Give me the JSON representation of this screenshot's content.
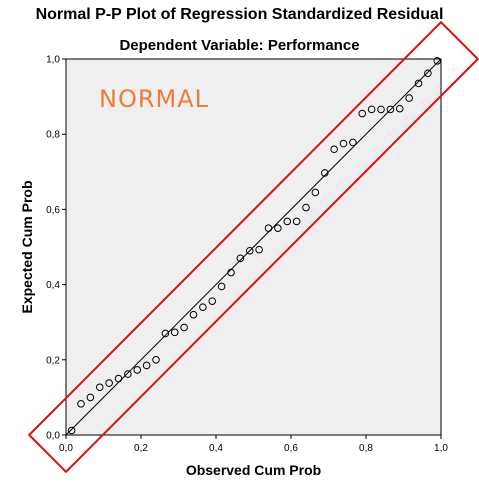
{
  "title": "Normal P-P Plot of Regression Standardized Residual",
  "subtitle": "Dependent Variable: Performance",
  "annotation": "NORMAL",
  "colors": {
    "plot_background": "#efefef",
    "points": "#000000",
    "reference_line": "#000000",
    "highlight_box": "#dd1111",
    "annotation": "#f07a3a"
  },
  "chart_data": {
    "type": "scatter",
    "title": "Normal P-P Plot of Regression Standardized Residual",
    "subtitle": "Dependent Variable: Performance",
    "xlabel": "Observed Cum Prob",
    "ylabel": "Expected Cum Prob",
    "xlim": [
      0,
      1
    ],
    "ylim": [
      0,
      1
    ],
    "xticks": [
      "0,0",
      "0,2",
      "0,4",
      "0,6",
      "0,8",
      "1,0"
    ],
    "yticks": [
      "0,0",
      "0,2",
      "0,4",
      "0,6",
      "0,8",
      "1,0"
    ],
    "grid": false,
    "reference_line": [
      [
        0,
        0
      ],
      [
        1,
        1
      ]
    ],
    "points": [
      {
        "x": 0.015,
        "y": 0.012
      },
      {
        "x": 0.04,
        "y": 0.083
      },
      {
        "x": 0.065,
        "y": 0.1
      },
      {
        "x": 0.09,
        "y": 0.127
      },
      {
        "x": 0.115,
        "y": 0.138
      },
      {
        "x": 0.14,
        "y": 0.15
      },
      {
        "x": 0.165,
        "y": 0.162
      },
      {
        "x": 0.19,
        "y": 0.173
      },
      {
        "x": 0.215,
        "y": 0.185
      },
      {
        "x": 0.24,
        "y": 0.2
      },
      {
        "x": 0.265,
        "y": 0.27
      },
      {
        "x": 0.29,
        "y": 0.273
      },
      {
        "x": 0.315,
        "y": 0.286
      },
      {
        "x": 0.34,
        "y": 0.32
      },
      {
        "x": 0.365,
        "y": 0.34
      },
      {
        "x": 0.39,
        "y": 0.356
      },
      {
        "x": 0.415,
        "y": 0.395
      },
      {
        "x": 0.44,
        "y": 0.432
      },
      {
        "x": 0.465,
        "y": 0.47
      },
      {
        "x": 0.49,
        "y": 0.49
      },
      {
        "x": 0.515,
        "y": 0.493
      },
      {
        "x": 0.54,
        "y": 0.55
      },
      {
        "x": 0.565,
        "y": 0.55
      },
      {
        "x": 0.59,
        "y": 0.568
      },
      {
        "x": 0.615,
        "y": 0.568
      },
      {
        "x": 0.64,
        "y": 0.605
      },
      {
        "x": 0.665,
        "y": 0.645
      },
      {
        "x": 0.69,
        "y": 0.697
      },
      {
        "x": 0.715,
        "y": 0.76
      },
      {
        "x": 0.74,
        "y": 0.775
      },
      {
        "x": 0.765,
        "y": 0.778
      },
      {
        "x": 0.79,
        "y": 0.855
      },
      {
        "x": 0.815,
        "y": 0.866
      },
      {
        "x": 0.84,
        "y": 0.866
      },
      {
        "x": 0.865,
        "y": 0.866
      },
      {
        "x": 0.89,
        "y": 0.868
      },
      {
        "x": 0.915,
        "y": 0.896
      },
      {
        "x": 0.94,
        "y": 0.935
      },
      {
        "x": 0.965,
        "y": 0.962
      },
      {
        "x": 0.99,
        "y": 0.995
      }
    ]
  }
}
